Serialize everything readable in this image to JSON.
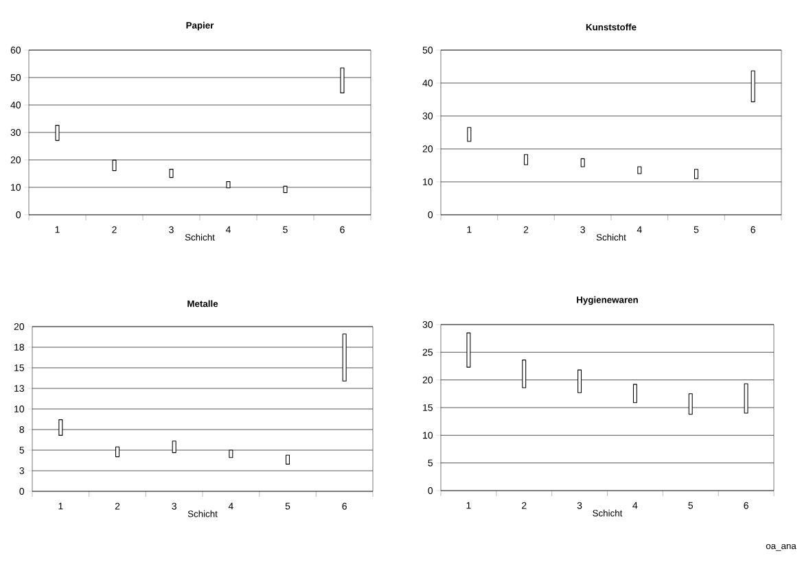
{
  "chart_data": [
    {
      "type": "bar",
      "title": "Papier",
      "xlabel": "Schicht",
      "categories": [
        "1",
        "2",
        "3",
        "4",
        "5",
        "6"
      ],
      "color": "#000000",
      "base": [
        27.1,
        16.1,
        13.6,
        9.8,
        8.1,
        44.4
      ],
      "values": [
        5.5,
        3.8,
        3.0,
        2.3,
        2.3,
        9.1
      ],
      "ylim": [
        0,
        60
      ],
      "yticks": [
        0,
        10,
        20,
        30,
        40,
        50,
        60
      ],
      "grid": "y"
    },
    {
      "type": "bar",
      "title": "Kunststoffe",
      "xlabel": "Schicht",
      "categories": [
        "1",
        "2",
        "3",
        "4",
        "5",
        "6"
      ],
      "color": "#000000",
      "base": [
        22.3,
        15.2,
        14.6,
        12.5,
        11.0,
        34.3
      ],
      "values": [
        4.2,
        3.1,
        2.4,
        2.1,
        2.8,
        9.4
      ],
      "ylim": [
        0,
        50
      ],
      "yticks": [
        0,
        10,
        20,
        30,
        40,
        50
      ],
      "grid": "y"
    },
    {
      "type": "bar",
      "title": "Metalle",
      "xlabel": "Schicht",
      "categories": [
        "1",
        "2",
        "3",
        "4",
        "5",
        "6"
      ],
      "color": "#000000",
      "base": [
        6.8,
        4.2,
        4.7,
        4.1,
        3.3,
        13.4
      ],
      "values": [
        1.9,
        1.2,
        1.4,
        0.9,
        1.1,
        5.7
      ],
      "ylim": [
        0,
        20
      ],
      "yticks": [
        0,
        {
          "value": 2.5,
          "label": "3"
        },
        5,
        {
          "value": 7.5,
          "label": "8"
        },
        10,
        {
          "value": 12.5,
          "label": "13"
        },
        15,
        {
          "value": 17.5,
          "label": "18"
        },
        20
      ],
      "grid": "y"
    },
    {
      "type": "bar",
      "title": "Hygienewaren",
      "xlabel": "Schicht",
      "categories": [
        "1",
        "2",
        "3",
        "4",
        "5",
        "6"
      ],
      "color": "#000000",
      "base": [
        22.3,
        18.6,
        17.7,
        15.9,
        13.8,
        14.0
      ],
      "values": [
        6.2,
        5.0,
        4.1,
        3.3,
        3.7,
        5.3
      ],
      "ylim": [
        0,
        30
      ],
      "yticks": [
        0,
        5,
        10,
        15,
        20,
        25,
        30
      ],
      "grid": "y",
      "annotations": [
        "oa_ana"
      ]
    }
  ]
}
